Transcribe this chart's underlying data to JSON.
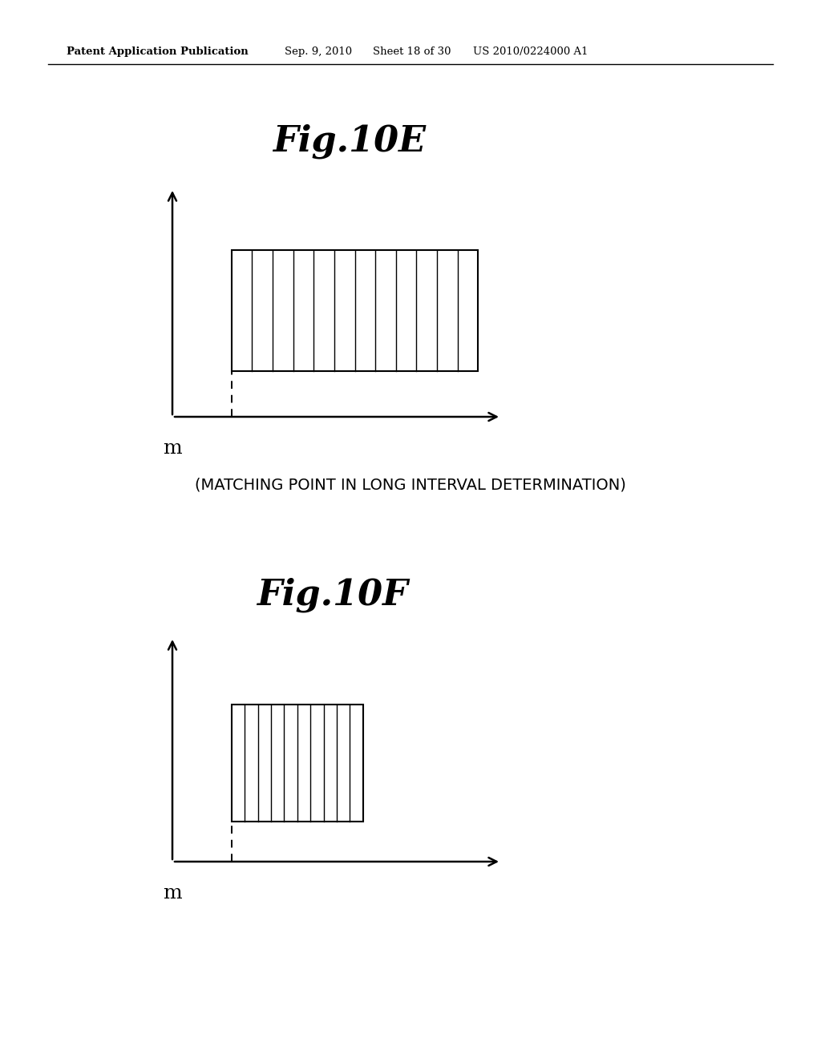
{
  "background_color": "#ffffff",
  "header_text1": "Patent Application Publication",
  "header_text2": "Sep. 9, 2010",
  "header_text3": "Sheet 18 of 30",
  "header_text4": "US 2010/0224000 A1",
  "fig10E_title": "Fig.10E",
  "fig10F_title": "Fig.10F",
  "caption": "(MATCHING POINT IN LONG INTERVAL DETERMINATION)",
  "xlabel": "m",
  "fig10E": {
    "num_vertical_lines": 11
  },
  "fig10F": {
    "num_vertical_lines": 9
  }
}
